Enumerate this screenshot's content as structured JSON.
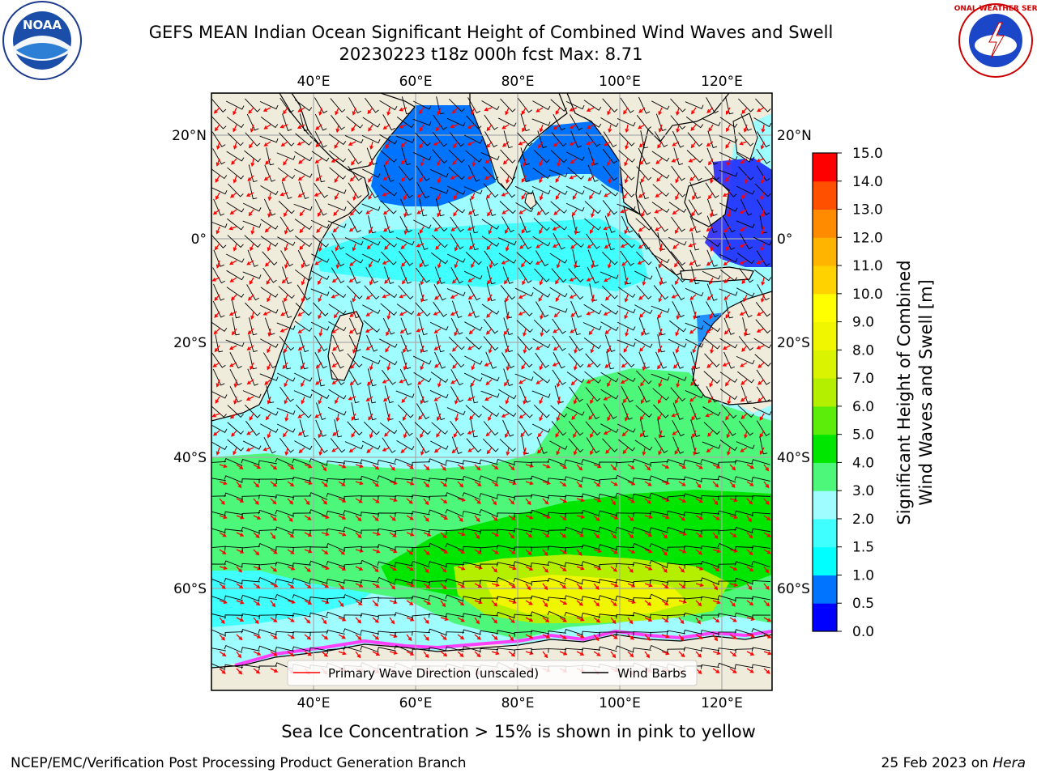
{
  "header": {
    "title": "GEFS MEAN Indian Ocean Significant Height of Combined Wind Waves and Swell",
    "subtitle": "20230223 t18z 000h fcst   Max: 8.71"
  },
  "logos": {
    "left": "noaa-logo",
    "left_text": "NOAA",
    "right": "nws-logo",
    "right_text": "NATIONAL WEATHER SERVICE"
  },
  "map": {
    "lon_labels": [
      "40°E",
      "60°E",
      "80°E",
      "100°E",
      "120°E"
    ],
    "lat_labels": [
      "20°N",
      "0°",
      "20°S",
      "40°S",
      "60°S"
    ],
    "land_color": "#efecdc",
    "legend": {
      "wave_direction": "Primary Wave Direction (unscaled)",
      "wind_barbs": "Wind Barbs"
    }
  },
  "colorbar": {
    "label_line1": "Significant Height of Combined",
    "label_line2": "Wind Waves and Swell [m]",
    "ticks": [
      "0.0",
      "0.5",
      "1.0",
      "1.5",
      "2.0",
      "3.0",
      "4.0",
      "5.0",
      "6.0",
      "7.0",
      "8.0",
      "9.0",
      "10.0",
      "11.0",
      "12.0",
      "13.0",
      "14.0",
      "15.0"
    ],
    "colors": [
      "#0000ff",
      "#0073ff",
      "#00ffff",
      "#40ffff",
      "#9ffcff",
      "#4cf77a",
      "#00e600",
      "#5ced0b",
      "#b4ef00",
      "#d9f300",
      "#f0f600",
      "#ffff00",
      "#ffd200",
      "#ffb400",
      "#ff8c00",
      "#ff5000",
      "#ff0000"
    ]
  },
  "footer": {
    "note": "Sea Ice Concentration > 15% is shown in pink to yellow",
    "credit": "NCEP/EMC/Verification Post Processing Product Generation Branch",
    "date": "25 Feb 2023 on ",
    "host": "Hera"
  }
}
